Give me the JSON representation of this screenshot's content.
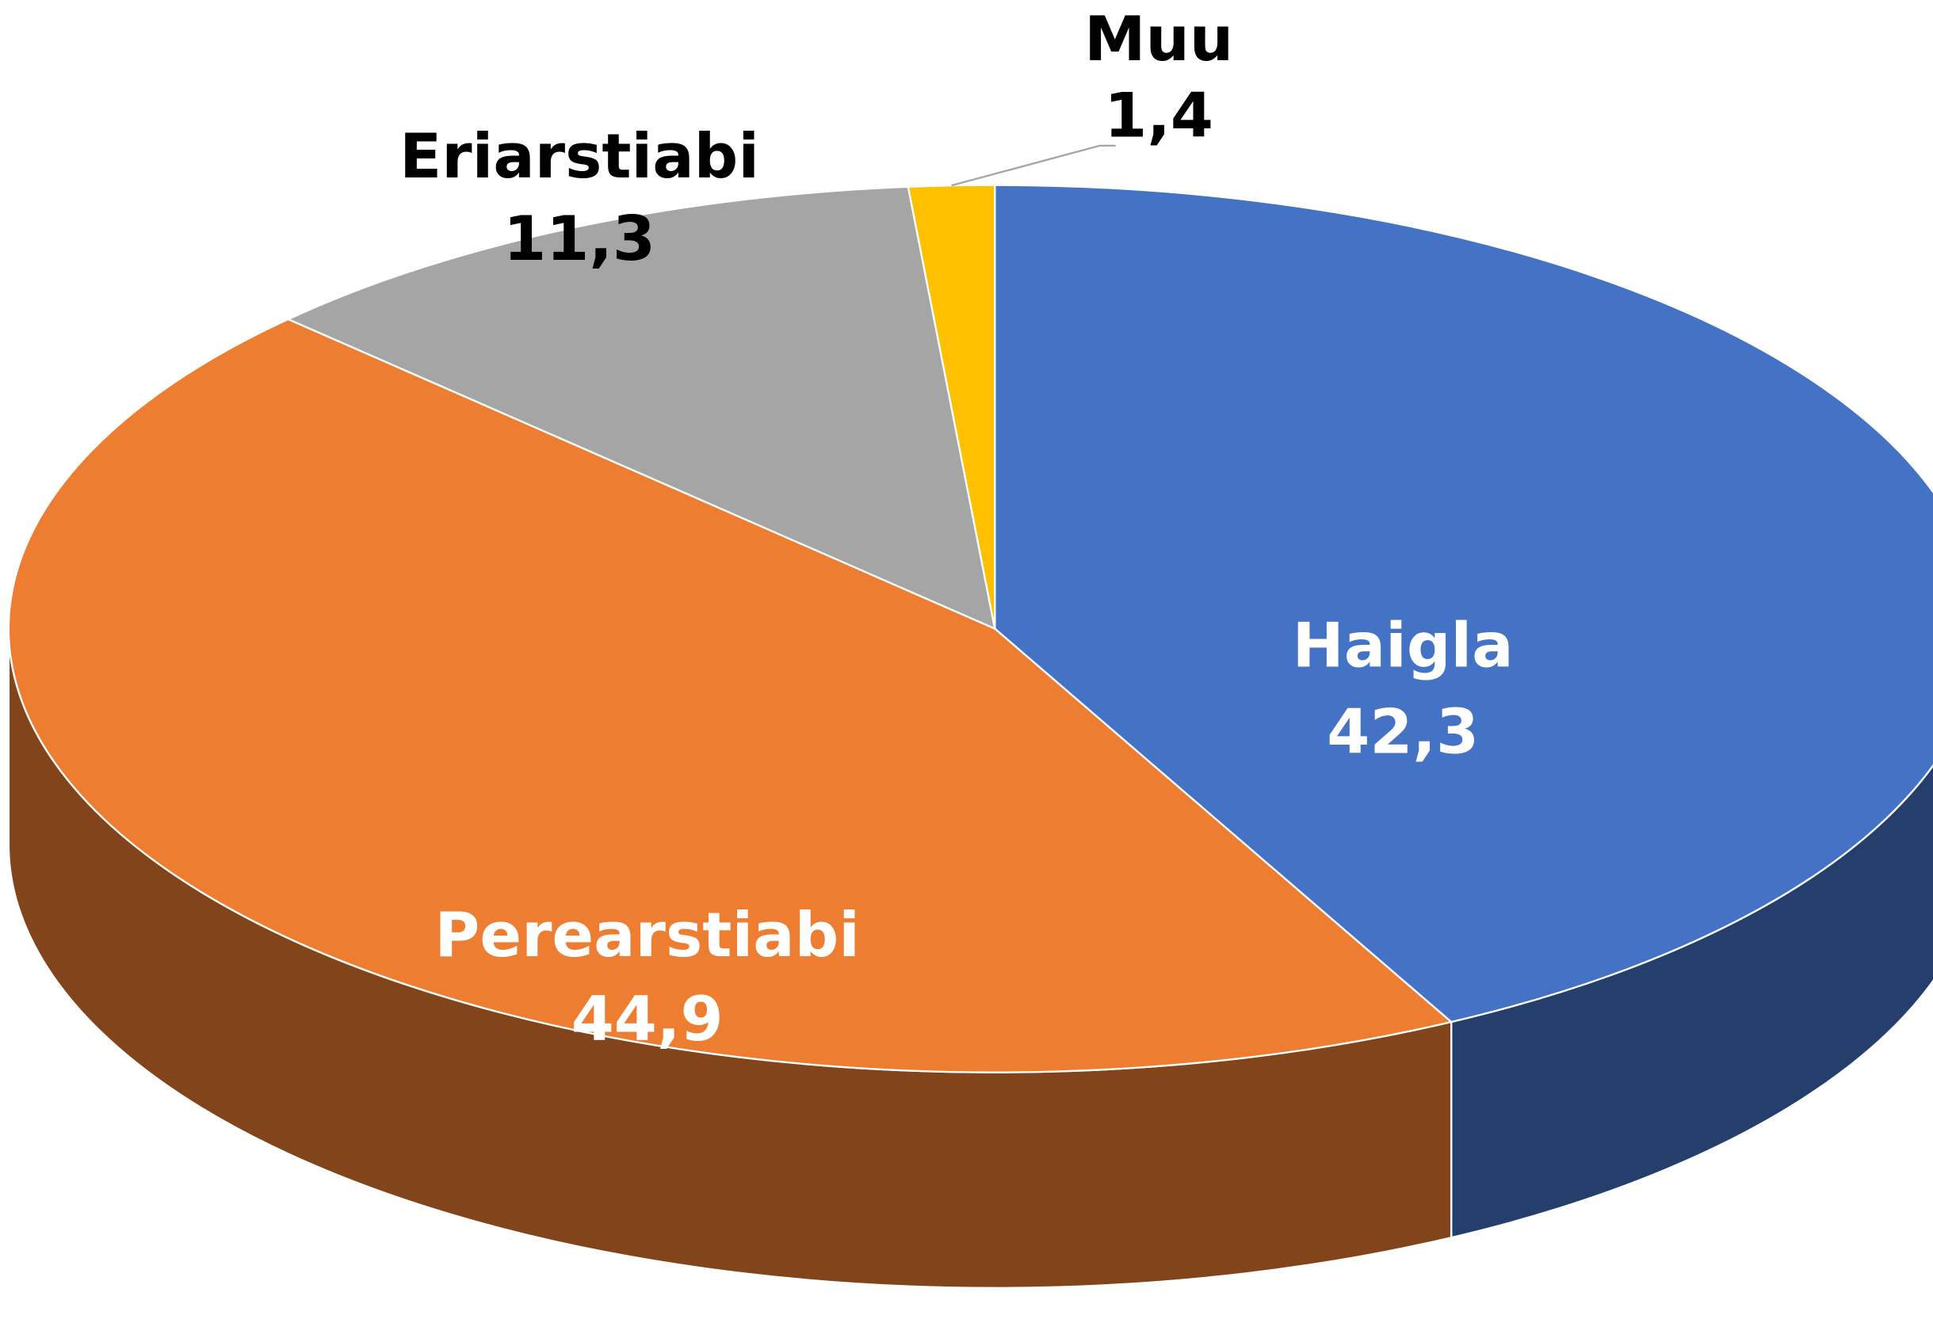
{
  "chart_data": {
    "type": "pie",
    "categories": [
      "Haigla",
      "Perearstiabi",
      "Eriarstiabi",
      "Muu"
    ],
    "values": [
      42.3,
      44.9,
      11.3,
      1.4
    ],
    "value_labels": [
      "42,3",
      "44,9",
      "11,3",
      "1,4"
    ],
    "colors": [
      "#4472c4",
      "#ed7d31",
      "#a5a5a5",
      "#ffc000"
    ]
  }
}
